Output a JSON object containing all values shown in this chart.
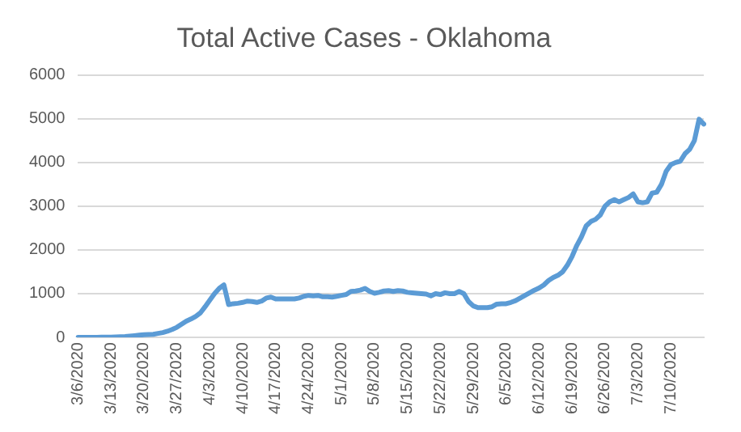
{
  "chart_data": {
    "type": "line",
    "title": "Total Active Cases - Oklahoma",
    "categories": [
      "3/6/2020",
      null,
      null,
      null,
      null,
      null,
      null,
      "3/13/2020",
      null,
      null,
      null,
      null,
      null,
      null,
      "3/20/2020",
      null,
      null,
      null,
      null,
      null,
      null,
      "3/27/2020",
      null,
      null,
      null,
      null,
      null,
      null,
      "4/3/2020",
      null,
      null,
      null,
      null,
      null,
      null,
      "4/10/2020",
      null,
      null,
      null,
      null,
      null,
      null,
      "4/17/2020",
      null,
      null,
      null,
      null,
      null,
      null,
      "4/24/2020",
      null,
      null,
      null,
      null,
      null,
      null,
      "5/1/2020",
      null,
      null,
      null,
      null,
      null,
      null,
      "5/8/2020",
      null,
      null,
      null,
      null,
      null,
      null,
      "5/15/2020",
      null,
      null,
      null,
      null,
      null,
      null,
      "5/22/2020",
      null,
      null,
      null,
      null,
      null,
      null,
      "5/29/2020",
      null,
      null,
      null,
      null,
      null,
      null,
      "6/5/2020",
      null,
      null,
      null,
      null,
      null,
      null,
      "6/12/2020",
      null,
      null,
      null,
      null,
      null,
      null,
      "6/19/2020",
      null,
      null,
      null,
      null,
      null,
      null,
      "6/26/2020",
      null,
      null,
      null,
      null,
      null,
      null,
      "7/3/2020",
      null,
      null,
      null,
      null,
      null,
      null,
      "7/10/2020",
      null,
      null,
      null,
      null,
      null,
      null,
      null
    ],
    "series": [
      {
        "color": "#5b9bd5",
        "values": [
          0,
          0,
          0,
          2,
          2,
          3,
          4,
          7,
          10,
          15,
          20,
          30,
          40,
          50,
          60,
          65,
          70,
          90,
          110,
          140,
          180,
          230,
          300,
          370,
          420,
          480,
          560,
          700,
          850,
          1000,
          1120,
          1200,
          750,
          770,
          780,
          800,
          830,
          820,
          800,
          830,
          900,
          920,
          880,
          880,
          880,
          880,
          880,
          900,
          940,
          960,
          950,
          960,
          930,
          930,
          920,
          940,
          960,
          980,
          1050,
          1060,
          1080,
          1120,
          1050,
          1010,
          1030,
          1060,
          1070,
          1050,
          1070,
          1060,
          1030,
          1020,
          1010,
          1000,
          990,
          950,
          1000,
          980,
          1020,
          1000,
          1000,
          1050,
          1000,
          820,
          720,
          680,
          680,
          680,
          700,
          760,
          770,
          770,
          800,
          840,
          900,
          960,
          1020,
          1080,
          1130,
          1200,
          1300,
          1370,
          1420,
          1500,
          1650,
          1850,
          2100,
          2300,
          2550,
          2650,
          2700,
          2800,
          3000,
          3100,
          3150,
          3100,
          3150,
          3200,
          3280,
          3100,
          3080,
          3100,
          3300,
          3320,
          3500,
          3800,
          3950,
          4000,
          4030,
          4200,
          4300,
          4500,
          4990,
          4880
        ]
      }
    ],
    "ylim": [
      0,
      6000
    ],
    "yticks": [
      0,
      1000,
      2000,
      3000,
      4000,
      5000,
      6000
    ],
    "grid": "y",
    "legend": false,
    "marker": "none",
    "line_style": "solid"
  }
}
